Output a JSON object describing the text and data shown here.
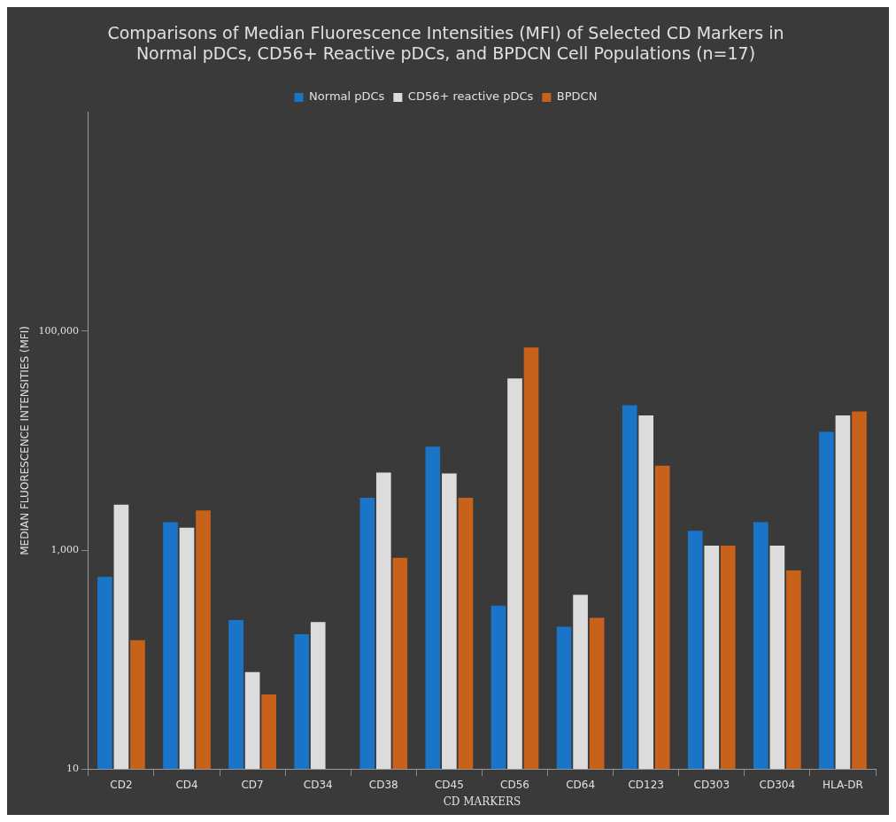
{
  "chart_data": {
    "type": "bar",
    "title": [
      "Comparisons of Median Fluorescence Intensities (MFI) of Selected CD Markers in",
      "Normal pDCs, CD56+ Reactive pDCs, and BPDCN Cell Populations (n=17)"
    ],
    "xlabel": "CD MARKERS",
    "ylabel": "MEDIAN FLUORESCENCE INTENSITIES (MFI)",
    "categories": [
      "CD2",
      "CD4",
      "CD7",
      "CD34",
      "CD38",
      "CD45",
      "CD56",
      "CD64",
      "CD123",
      "CD303",
      "CD304",
      "HLA-DR"
    ],
    "series": [
      {
        "name": "Normal pDCs",
        "color": "#1a75c9",
        "values": [
          570,
          1800,
          230,
          170,
          3000,
          8800,
          310,
          200,
          21000,
          1500,
          1800,
          12000
        ]
      },
      {
        "name": "CD56+ reactive pDCs",
        "color": "#dcdcdc",
        "values": [
          2600,
          1600,
          77,
          220,
          5100,
          5000,
          37000,
          390,
          17000,
          1100,
          1100,
          17000
        ]
      },
      {
        "name": "BPDCN",
        "color": "#c8611a",
        "values": [
          150,
          2300,
          48,
          null,
          850,
          3000,
          71000,
          240,
          5900,
          1100,
          650,
          18500
        ]
      }
    ],
    "log": "y",
    "ylim": [
      10,
      10000000
    ],
    "yticks": [
      10,
      {
        "value": 1000,
        "label": "1,000"
      },
      {
        "value": 100000,
        "label": "100,000"
      }
    ],
    "grid": false,
    "legend": "top"
  }
}
